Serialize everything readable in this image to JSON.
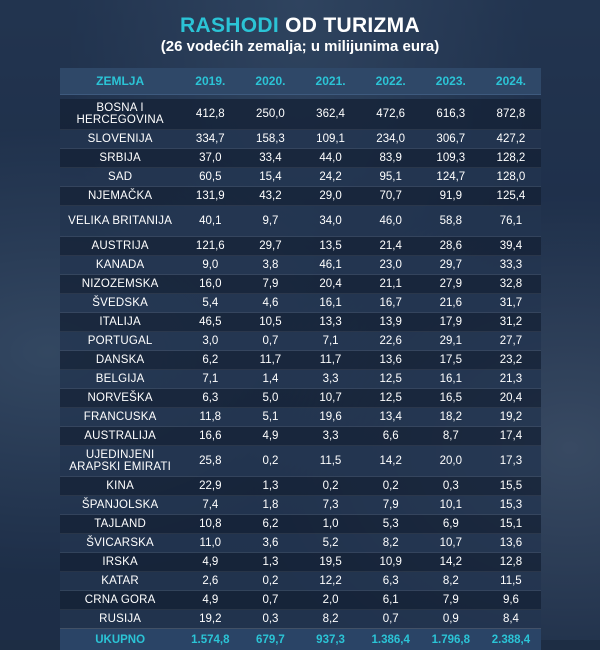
{
  "title": {
    "highlight": "RASHODI",
    "rest": "OD TURIZMA"
  },
  "subtitle": "(26 vodećih zemalja; u milijunima eura)",
  "table": {
    "headers": [
      "ZEMLJA",
      "2019.",
      "2020.",
      "2021.",
      "2022.",
      "2023.",
      "2024."
    ],
    "rows": [
      {
        "country": "BOSNA I HERCEGOVINA",
        "values": [
          "412,8",
          "250,0",
          "362,4",
          "472,6",
          "616,3",
          "872,8"
        ]
      },
      {
        "country": "SLOVENIJA",
        "values": [
          "334,7",
          "158,3",
          "109,1",
          "234,0",
          "306,7",
          "427,2"
        ]
      },
      {
        "country": "SRBIJA",
        "values": [
          "37,0",
          "33,4",
          "44,0",
          "83,9",
          "109,3",
          "128,2"
        ]
      },
      {
        "country": "SAD",
        "values": [
          "60,5",
          "15,4",
          "24,2",
          "95,1",
          "124,7",
          "128,0"
        ]
      },
      {
        "country": "NJEMAČKA",
        "values": [
          "131,9",
          "43,2",
          "29,0",
          "70,7",
          "91,9",
          "125,4"
        ]
      },
      {
        "country": "VELIKA BRITANIJA",
        "values": [
          "40,1",
          "9,7",
          "34,0",
          "46,0",
          "58,8",
          "76,1"
        ]
      },
      {
        "country": "AUSTRIJA",
        "values": [
          "121,6",
          "29,7",
          "13,5",
          "21,4",
          "28,6",
          "39,4"
        ]
      },
      {
        "country": "KANADA",
        "values": [
          "9,0",
          "3,8",
          "46,1",
          "23,0",
          "29,7",
          "33,3"
        ]
      },
      {
        "country": "NIZOZEMSKA",
        "values": [
          "16,0",
          "7,9",
          "20,4",
          "21,1",
          "27,9",
          "32,8"
        ]
      },
      {
        "country": "ŠVEDSKA",
        "values": [
          "5,4",
          "4,6",
          "16,1",
          "16,7",
          "21,6",
          "31,7"
        ]
      },
      {
        "country": "ITALIJA",
        "values": [
          "46,5",
          "10,5",
          "13,3",
          "13,9",
          "17,9",
          "31,2"
        ]
      },
      {
        "country": "PORTUGAL",
        "values": [
          "3,0",
          "0,7",
          "7,1",
          "22,6",
          "29,1",
          "27,7"
        ]
      },
      {
        "country": "DANSKA",
        "values": [
          "6,2",
          "11,7",
          "11,7",
          "13,6",
          "17,5",
          "23,2"
        ]
      },
      {
        "country": "BELGIJA",
        "values": [
          "7,1",
          "1,4",
          "3,3",
          "12,5",
          "16,1",
          "21,3"
        ]
      },
      {
        "country": "NORVEŠKA",
        "values": [
          "6,3",
          "5,0",
          "10,7",
          "12,5",
          "16,5",
          "20,4"
        ]
      },
      {
        "country": "FRANCUSKA",
        "values": [
          "11,8",
          "5,1",
          "19,6",
          "13,4",
          "18,2",
          "19,2"
        ]
      },
      {
        "country": "AUSTRALIJA",
        "values": [
          "16,6",
          "4,9",
          "3,3",
          "6,6",
          "8,7",
          "17,4"
        ]
      },
      {
        "country": "UJEDINJENI ARAPSKI EMIRATI",
        "values": [
          "25,8",
          "0,2",
          "11,5",
          "14,2",
          "20,0",
          "17,3"
        ]
      },
      {
        "country": "KINA",
        "values": [
          "22,9",
          "1,3",
          "0,2",
          "0,2",
          "0,3",
          "15,5"
        ]
      },
      {
        "country": "ŠPANJOLSKA",
        "values": [
          "7,4",
          "1,8",
          "7,3",
          "7,9",
          "10,1",
          "15,3"
        ]
      },
      {
        "country": "TAJLAND",
        "values": [
          "10,8",
          "6,2",
          "1,0",
          "5,3",
          "6,9",
          "15,1"
        ]
      },
      {
        "country": "ŠVICARSKA",
        "values": [
          "11,0",
          "3,6",
          "5,2",
          "8,2",
          "10,7",
          "13,6"
        ]
      },
      {
        "country": "IRSKA",
        "values": [
          "4,9",
          "1,3",
          "19,5",
          "10,9",
          "14,2",
          "12,8"
        ]
      },
      {
        "country": "KATAR",
        "values": [
          "2,6",
          "0,2",
          "12,2",
          "6,3",
          "8,2",
          "11,5"
        ]
      },
      {
        "country": "CRNA GORA",
        "values": [
          "4,9",
          "0,7",
          "2,0",
          "6,1",
          "7,9",
          "9,6"
        ]
      },
      {
        "country": "RUSIJA",
        "values": [
          "19,2",
          "0,3",
          "8,2",
          "0,7",
          "0,9",
          "8,4"
        ]
      }
    ],
    "total": {
      "label": "UKUPNO",
      "values": [
        "1.574,8",
        "679,7",
        "937,3",
        "1.386,4",
        "1.796,8",
        "2.388,4"
      ]
    }
  },
  "colors": {
    "accent": "#2bc4d6",
    "text": "#ffffff",
    "background": "#1d2d44"
  }
}
